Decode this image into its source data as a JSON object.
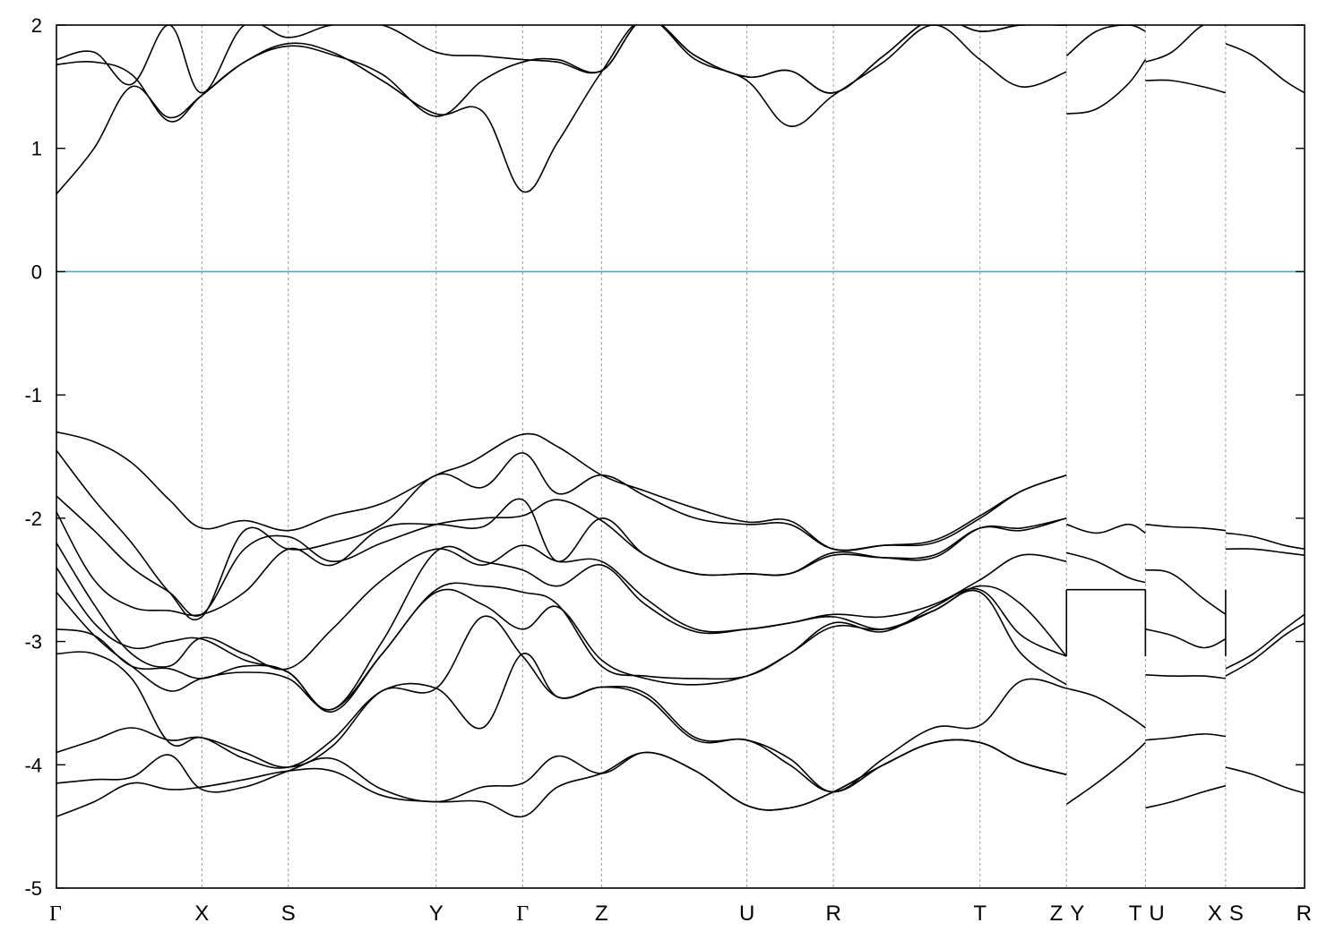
{
  "chart_data": {
    "type": "line",
    "title": "",
    "xlabel": "",
    "ylabel": "",
    "ylim": [
      -5,
      2
    ],
    "yticks": [
      -5,
      -4,
      -3,
      -2,
      -1,
      0,
      1,
      2
    ],
    "fermi_level": 0,
    "fermi_color": "#4aa8c8",
    "band_color": "#000000",
    "kpoints": [
      {
        "label": "Γ",
        "x": 0.0
      },
      {
        "label": "X",
        "x": 1.16
      },
      {
        "label": "S",
        "x": 1.85
      },
      {
        "label": "Y",
        "x": 3.03
      },
      {
        "label": "Γ",
        "x": 3.72
      },
      {
        "label": "Z",
        "x": 4.35
      },
      {
        "label": "U",
        "x": 5.51
      },
      {
        "label": "R",
        "x": 6.2
      },
      {
        "label": "T",
        "x": 7.37
      },
      {
        "label": "Z",
        "x": 8.06
      },
      {
        "label": "Y",
        "x": 8.06
      },
      {
        "label": "T",
        "x": 8.69
      },
      {
        "label": "U",
        "x": 8.69
      },
      {
        "label": "X",
        "x": 9.33
      },
      {
        "label": "S",
        "x": 9.33
      },
      {
        "label": "R",
        "x": 9.96
      }
    ],
    "series": [
      {
        "x": [
          0,
          0.3,
          0.6,
          0.9,
          1.16,
          1.5,
          1.85,
          2.2,
          2.6,
          3.03,
          3.3,
          3.72,
          4.0,
          4.35,
          4.7,
          5.1,
          5.51,
          5.85,
          6.2,
          6.6,
          7.0,
          7.37,
          7.7,
          8.06
        ],
        "values": [
          -1.3,
          -1.38,
          -1.55,
          -1.85,
          -2.08,
          -2.02,
          -2.1,
          -1.98,
          -1.88,
          -1.65,
          -1.55,
          -1.32,
          -1.42,
          -1.65,
          -1.78,
          -1.92,
          -2.03,
          -2.02,
          -2.25,
          -2.22,
          -2.18,
          -1.98,
          -1.78,
          -1.65
        ]
      },
      {
        "x": [
          0,
          0.3,
          0.6,
          0.9,
          1.16,
          1.5,
          1.85,
          2.2,
          2.6,
          3.03,
          3.4,
          3.72,
          4.0,
          4.35,
          4.7,
          5.1,
          5.51,
          5.85,
          6.2,
          6.6,
          7.0,
          7.37,
          7.7,
          8.06
        ],
        "values": [
          -1.45,
          -1.85,
          -2.2,
          -2.6,
          -2.8,
          -2.1,
          -2.25,
          -2.2,
          -2.05,
          -1.65,
          -1.75,
          -1.47,
          -1.8,
          -1.65,
          -1.82,
          -2.0,
          -2.05,
          -2.05,
          -2.25,
          -2.22,
          -2.2,
          -2.0,
          -1.78,
          -1.65
        ]
      },
      {
        "x": [
          0,
          0.3,
          0.6,
          0.9,
          1.16,
          1.5,
          1.85,
          2.2,
          2.6,
          3.03,
          3.4,
          3.72,
          4.0,
          4.35,
          4.7,
          5.1,
          5.51,
          5.85,
          6.2,
          6.6,
          7.0,
          7.37,
          7.7,
          8.06
        ],
        "values": [
          -1.82,
          -2.1,
          -2.4,
          -2.6,
          -2.78,
          -2.25,
          -2.15,
          -2.35,
          -2.2,
          -2.05,
          -2.0,
          -1.98,
          -1.85,
          -2.02,
          -2.3,
          -2.45,
          -2.45,
          -2.45,
          -2.3,
          -2.32,
          -2.3,
          -2.08,
          -2.1,
          -2.0
        ]
      },
      {
        "x": [
          0,
          0.3,
          0.6,
          0.9,
          1.16,
          1.5,
          1.85,
          2.2,
          2.6,
          3.03,
          3.4,
          3.72,
          4.0,
          4.35,
          4.7,
          5.1,
          5.51,
          5.85,
          6.2,
          6.6,
          7.0,
          7.37,
          7.7,
          8.06
        ],
        "values": [
          -1.95,
          -2.5,
          -2.72,
          -2.75,
          -2.78,
          -2.6,
          -2.25,
          -2.38,
          -2.08,
          -2.05,
          -2.07,
          -1.85,
          -2.35,
          -2.0,
          -2.3,
          -2.45,
          -2.45,
          -2.45,
          -2.28,
          -2.32,
          -2.32,
          -2.08,
          -2.08,
          -2.0
        ]
      },
      {
        "x": [
          0,
          0.3,
          0.6,
          0.9,
          1.16,
          1.5,
          1.85,
          2.2,
          2.6,
          3.03,
          3.4,
          3.72,
          4.0,
          4.35,
          4.7,
          5.1,
          5.51,
          5.85,
          6.2,
          6.6,
          7.0,
          7.37,
          7.7,
          8.06
        ],
        "values": [
          -2.2,
          -2.7,
          -3.1,
          -3.2,
          -2.97,
          -3.1,
          -3.22,
          -2.9,
          -2.5,
          -2.25,
          -2.38,
          -2.22,
          -2.35,
          -2.35,
          -2.65,
          -2.9,
          -2.9,
          -2.85,
          -2.78,
          -2.8,
          -2.7,
          -2.5,
          -2.3,
          -2.35
        ]
      },
      {
        "x": [
          0,
          0.3,
          0.6,
          0.9,
          1.16,
          1.5,
          1.85,
          2.2,
          2.6,
          3.03,
          3.4,
          3.72,
          4.0,
          4.35,
          4.7,
          5.1,
          5.51,
          5.85,
          6.2,
          6.6,
          7.0,
          7.37,
          7.7,
          8.06
        ],
        "values": [
          -2.4,
          -2.85,
          -3.05,
          -3.0,
          -2.98,
          -3.15,
          -3.25,
          -3.55,
          -3.0,
          -2.27,
          -2.35,
          -2.42,
          -2.55,
          -2.38,
          -2.7,
          -2.92,
          -2.9,
          -2.85,
          -2.8,
          -2.9,
          -2.75,
          -2.55,
          -2.7,
          -3.12
        ]
      },
      {
        "x": [
          0,
          0.3,
          0.6,
          0.9,
          1.16,
          1.5,
          1.85,
          2.2,
          2.6,
          3.03,
          3.4,
          3.72,
          4.0,
          4.35,
          4.7,
          5.1,
          5.51,
          5.85,
          6.2,
          6.6,
          7.0,
          7.37,
          7.7,
          8.06
        ],
        "values": [
          -2.6,
          -2.95,
          -3.2,
          -3.4,
          -3.3,
          -3.25,
          -3.3,
          -3.55,
          -3.1,
          -2.58,
          -2.55,
          -2.6,
          -2.7,
          -3.2,
          -3.28,
          -3.3,
          -3.28,
          -3.1,
          -2.85,
          -2.92,
          -2.72,
          -2.58,
          -2.95,
          -3.12
        ]
      },
      {
        "x": [
          0,
          0.3,
          0.6,
          0.9,
          1.16,
          1.5,
          1.85,
          2.2,
          2.6,
          3.03,
          3.4,
          3.72,
          4.0,
          4.35,
          4.7,
          5.1,
          5.51,
          5.85,
          6.2,
          6.6,
          7.0,
          7.37,
          7.7,
          8.06
        ],
        "values": [
          -2.9,
          -2.95,
          -3.2,
          -3.22,
          -3.3,
          -3.2,
          -3.25,
          -3.57,
          -3.1,
          -2.6,
          -2.7,
          -2.9,
          -2.72,
          -3.15,
          -3.3,
          -3.35,
          -3.28,
          -3.1,
          -2.88,
          -2.9,
          -2.75,
          -2.6,
          -3.1,
          -3.35
        ]
      },
      {
        "x": [
          0,
          0.3,
          0.6,
          0.9,
          1.16,
          1.5,
          1.85,
          2.2,
          2.6,
          3.03,
          3.4,
          3.72,
          4.0,
          4.35,
          4.7,
          5.1,
          5.51,
          5.85,
          6.2,
          6.6,
          7.0,
          7.37,
          7.7,
          8.06
        ],
        "values": [
          -3.1,
          -3.1,
          -3.3,
          -3.82,
          -3.78,
          -3.95,
          -4.02,
          -3.8,
          -3.4,
          -3.38,
          -3.7,
          -3.1,
          -3.45,
          -3.37,
          -3.42,
          -3.78,
          -3.8,
          -3.95,
          -4.22,
          -3.95,
          -3.7,
          -3.68,
          -3.32,
          -3.38
        ]
      },
      {
        "x": [
          0,
          0.3,
          0.6,
          0.9,
          1.16,
          1.5,
          1.85,
          2.2,
          2.6,
          3.03,
          3.4,
          3.72,
          4.0,
          4.35,
          4.7,
          5.1,
          5.51,
          5.85,
          6.2,
          6.6,
          7.0,
          7.37,
          7.7,
          8.06
        ],
        "values": [
          -3.9,
          -3.8,
          -3.7,
          -3.8,
          -3.78,
          -3.9,
          -4.02,
          -3.85,
          -3.4,
          -3.38,
          -2.8,
          -3.12,
          -3.45,
          -3.37,
          -3.45,
          -3.8,
          -3.8,
          -4.0,
          -4.22,
          -4.0,
          -3.82,
          -3.82,
          -3.98,
          -4.08
        ]
      },
      {
        "x": [
          0,
          0.3,
          0.6,
          0.9,
          1.16,
          1.5,
          1.85,
          2.2,
          2.6,
          3.03,
          3.4,
          3.72,
          4.0,
          4.35,
          4.7,
          5.1,
          5.51,
          5.85,
          6.2,
          6.6,
          7.0,
          7.37,
          7.7,
          8.06
        ],
        "values": [
          -4.15,
          -4.12,
          -4.1,
          -3.92,
          -4.2,
          -4.18,
          -4.05,
          -3.95,
          -4.2,
          -4.3,
          -4.18,
          -4.15,
          -3.93,
          -4.07,
          -3.9,
          -4.05,
          -4.33,
          -4.35,
          -4.22,
          -4.0,
          -3.82,
          -3.82,
          -3.98,
          -4.08
        ]
      },
      {
        "x": [
          0,
          0.3,
          0.6,
          0.9,
          1.16,
          1.5,
          1.85,
          2.2,
          2.6,
          3.03,
          3.4,
          3.72,
          4.0,
          4.35,
          4.7,
          5.1,
          5.51,
          5.85,
          6.2,
          6.6,
          7.0,
          7.37,
          7.7,
          8.06
        ],
        "values": [
          -4.42,
          -4.3,
          -4.15,
          -4.2,
          -4.18,
          -4.12,
          -4.05,
          -4.05,
          -4.25,
          -4.3,
          -4.3,
          -4.42,
          -4.18,
          -4.07,
          -3.9,
          -4.05,
          -4.33,
          -4.35,
          -4.22,
          -4.0,
          -3.82,
          -3.82,
          -3.98,
          -4.08
        ]
      },
      {
        "x": [
          0,
          0.3,
          0.6,
          0.9,
          1.16,
          1.5,
          1.85,
          2.2,
          2.6,
          3.03,
          3.4,
          3.72,
          4.0,
          4.35,
          4.7,
          5.1,
          5.51,
          5.85,
          6.2,
          6.6,
          7.0,
          7.37,
          7.7,
          8.06
        ],
        "values": [
          0.63,
          1.0,
          1.5,
          1.25,
          1.43,
          1.7,
          1.85,
          1.78,
          1.55,
          1.28,
          1.3,
          0.65,
          1.05,
          1.62,
          2.05,
          1.72,
          1.55,
          1.18,
          1.43,
          1.7,
          2.0,
          1.72,
          1.5,
          1.62
        ]
      },
      {
        "x": [
          0,
          0.3,
          0.6,
          0.9,
          1.16,
          1.5,
          1.85,
          2.2,
          2.6,
          3.03,
          3.4,
          3.72,
          4.0,
          4.35,
          4.7,
          5.1,
          5.51,
          5.85,
          6.2,
          6.6,
          7.0,
          7.37,
          7.7,
          8.06
        ],
        "values": [
          1.68,
          1.7,
          1.6,
          1.22,
          1.43,
          1.7,
          1.83,
          1.76,
          1.6,
          1.26,
          1.55,
          1.7,
          1.72,
          1.63,
          2.05,
          1.75,
          1.58,
          1.63,
          1.45,
          1.75,
          2.05,
          1.95,
          2.0,
          2.0
        ]
      },
      {
        "x": [
          0,
          0.3,
          0.6,
          0.9,
          1.16,
          1.5,
          1.85,
          2.2,
          2.6,
          3.03,
          3.4,
          3.72,
          4.0,
          4.35,
          4.7,
          5.1,
          5.51,
          5.85,
          6.2,
          6.6,
          7.0,
          7.37,
          7.7,
          8.06
        ],
        "values": [
          1.72,
          1.78,
          1.52,
          2.0,
          1.45,
          2.0,
          1.9,
          2.0,
          2.0,
          1.78,
          1.75,
          1.72,
          1.7,
          1.63,
          2.05,
          1.75,
          1.58,
          1.63,
          1.45,
          1.75,
          2.05,
          1.95,
          2.0,
          2.0
        ]
      },
      {
        "x": [
          8.06,
          8.3,
          8.55,
          8.69
        ],
        "values": [
          -2.05,
          -2.12,
          -2.05,
          -2.12
        ]
      },
      {
        "x": [
          8.06,
          8.3,
          8.55,
          8.69
        ],
        "values": [
          -2.28,
          -2.35,
          -2.48,
          -2.52
        ]
      },
      {
        "x": [
          8.06,
          8.3,
          8.55,
          8.69
        ],
        "values": [
          -2.58,
          -2.58,
          -2.58,
          -2.58
        ]
      },
      {
        "x": [
          8.06,
          8.3,
          8.55,
          8.69
        ],
        "values": [
          -3.38,
          -3.45,
          -3.6,
          -3.7
        ]
      },
      {
        "x": [
          8.06,
          8.3,
          8.55,
          8.69
        ],
        "values": [
          -4.32,
          -4.15,
          -3.95,
          -3.82
        ]
      },
      {
        "x": [
          8.06,
          8.3,
          8.55,
          8.69
        ],
        "values": [
          1.28,
          1.32,
          1.52,
          1.72
        ]
      },
      {
        "x": [
          8.06,
          8.3,
          8.55,
          8.69
        ],
        "values": [
          1.75,
          1.95,
          2.0,
          1.95
        ]
      },
      {
        "x": [
          8.69,
          8.9,
          9.15,
          9.33
        ],
        "values": [
          -2.05,
          -2.07,
          -2.08,
          -2.1
        ]
      },
      {
        "x": [
          8.69,
          8.9,
          9.15,
          9.33
        ],
        "values": [
          -2.42,
          -2.45,
          -2.65,
          -2.78
        ]
      },
      {
        "x": [
          8.69,
          8.9,
          9.15,
          9.33
        ],
        "values": [
          -2.9,
          -2.95,
          -3.05,
          -2.98
        ]
      },
      {
        "x": [
          8.69,
          8.9,
          9.15,
          9.33
        ],
        "values": [
          -3.27,
          -3.28,
          -3.28,
          -3.3
        ]
      },
      {
        "x": [
          8.69,
          8.9,
          9.15,
          9.33
        ],
        "values": [
          -3.8,
          -3.78,
          -3.75,
          -3.77
        ]
      },
      {
        "x": [
          8.69,
          8.9,
          9.15,
          9.33
        ],
        "values": [
          -4.35,
          -4.3,
          -4.22,
          -4.17
        ]
      },
      {
        "x": [
          8.69,
          8.9,
          9.15,
          9.33
        ],
        "values": [
          1.55,
          1.55,
          1.5,
          1.45
        ]
      },
      {
        "x": [
          8.69,
          8.9,
          9.15,
          9.33
        ],
        "values": [
          1.7,
          1.78,
          2.0,
          2.0
        ]
      },
      {
        "x": [
          9.33,
          9.55,
          9.8,
          9.96
        ],
        "values": [
          -2.12,
          -2.15,
          -2.22,
          -2.25
        ]
      },
      {
        "x": [
          9.33,
          9.55,
          9.8,
          9.96
        ],
        "values": [
          -2.25,
          -2.25,
          -2.28,
          -2.3
        ]
      },
      {
        "x": [
          9.33,
          9.55,
          9.8,
          9.96
        ],
        "values": [
          -3.22,
          -3.1,
          -2.9,
          -2.78
        ]
      },
      {
        "x": [
          9.33,
          9.55,
          9.8,
          9.96
        ],
        "values": [
          -3.28,
          -3.15,
          -2.95,
          -2.85
        ]
      },
      {
        "x": [
          9.33,
          9.55,
          9.8,
          9.96
        ],
        "values": [
          -4.02,
          -4.08,
          -4.18,
          -4.23
        ]
      },
      {
        "x": [
          9.33,
          9.55,
          9.8,
          9.96
        ],
        "values": [
          1.85,
          1.75,
          1.55,
          1.45
        ]
      }
    ]
  }
}
